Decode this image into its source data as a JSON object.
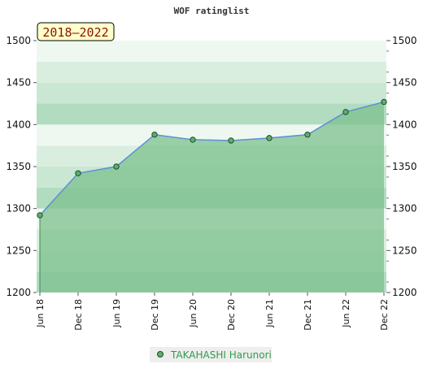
{
  "colors": {
    "area_fill": "#7cc08e",
    "line": "#5b8fd6",
    "marker_fill": "#5dae6c",
    "marker_stroke": "#1f4d2a",
    "period_bg": "#ffffc8",
    "legend_bg": "#eeeeee",
    "legend_text": "#2e9d4a"
  },
  "chart_data": {
    "type": "area",
    "title": "WOF ratinglist",
    "period_label": "2018–2022",
    "xlabel": "",
    "ylabel": "",
    "ylim": [
      1200,
      1500
    ],
    "yticks": [
      1200,
      1250,
      1300,
      1350,
      1400,
      1450,
      1500
    ],
    "grid": true,
    "legend_position": "bottom",
    "categories": [
      "Jun 18",
      "Dec 18",
      "Jun 19",
      "Dec 19",
      "Jun 20",
      "Dec 20",
      "Jun 21",
      "Dec 21",
      "Jun 22",
      "Dec 22"
    ],
    "series": [
      {
        "name": "TAKAHASHI Harunori",
        "values": [
          1292,
          1342,
          1350,
          1388,
          1382,
          1381,
          1384,
          1388,
          1415,
          1427
        ]
      }
    ]
  }
}
